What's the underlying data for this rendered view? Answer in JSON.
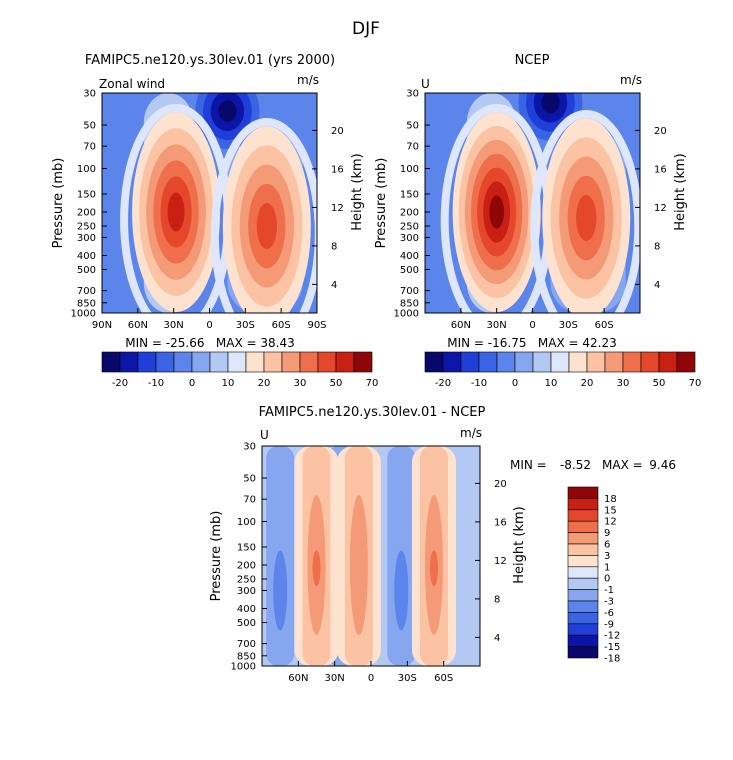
{
  "page": {
    "title": "DJF"
  },
  "colors": {
    "blue_scale": [
      "#08086b",
      "#0b16a8",
      "#1f3fd8",
      "#3a64e3",
      "#5b85ea",
      "#86a7ef",
      "#b3c9f4",
      "#dde6fa"
    ],
    "red_scale": [
      "#fde3cf",
      "#fbc3a3",
      "#f59a76",
      "#ef6f4d",
      "#e4472b",
      "#c92014",
      "#8e0606"
    ]
  },
  "chart_data": [
    {
      "id": "model",
      "type": "contour",
      "title": "FAMIPC5.ne120.ys.30lev.01 (yrs 2000)",
      "left_label": "Zonal wind",
      "right_label": "m/s",
      "ylabel": "Pressure (mb)",
      "y2label": "Height (km)",
      "x_ticks": [
        "90N",
        "60N",
        "30N",
        "0",
        "30S",
        "60S",
        "90S"
      ],
      "x_tick_values": [
        90,
        60,
        30,
        0,
        -30,
        -60,
        -90
      ],
      "xlim": [
        90,
        -90
      ],
      "y_ticks": [
        "30",
        "50",
        "70",
        "100",
        "150",
        "200",
        "250",
        "300",
        "400",
        "500",
        "700",
        "850",
        "1000"
      ],
      "y_tick_values": [
        30,
        50,
        70,
        100,
        150,
        200,
        250,
        300,
        400,
        500,
        700,
        850,
        1000
      ],
      "ylim": [
        1000,
        30
      ],
      "height_ticks": [
        "20",
        "16",
        "12",
        "8",
        "4"
      ],
      "height_tick_values": [
        20,
        16,
        12,
        8,
        4
      ],
      "jets": [
        {
          "lat": 28,
          "p": 200,
          "max": 38.43
        },
        {
          "lat": -48,
          "p": 250,
          "max": 28
        }
      ],
      "easterly_min": {
        "lat": -15,
        "p": 40,
        "min": -25.66
      },
      "stats": "MIN = -25.66   MAX = 38.43",
      "min": -25.66,
      "max": 38.43,
      "colorbar": {
        "orientation": "horizontal",
        "labels": [
          "-20",
          "-10",
          "0",
          "10",
          "20",
          "30",
          "50",
          "70"
        ],
        "levels": [
          -20,
          -10,
          0,
          10,
          20,
          30,
          50,
          70
        ]
      }
    },
    {
      "id": "obs",
      "type": "contour",
      "title": "NCEP",
      "left_label": "U",
      "right_label": "m/s",
      "ylabel": "Pressure (mb)",
      "y2label": "Height (km)",
      "x_ticks": [
        "60N",
        "30N",
        "0",
        "30S",
        "60S"
      ],
      "x_tick_values": [
        60,
        30,
        0,
        -30,
        -60
      ],
      "xlim": [
        90,
        -90
      ],
      "y_ticks": [
        "30",
        "50",
        "70",
        "100",
        "150",
        "200",
        "250",
        "300",
        "400",
        "500",
        "700",
        "850",
        "1000"
      ],
      "y_tick_values": [
        30,
        50,
        70,
        100,
        150,
        200,
        250,
        300,
        400,
        500,
        700,
        850,
        1000
      ],
      "ylim": [
        1000,
        30
      ],
      "height_ticks": [
        "20",
        "16",
        "12",
        "8",
        "4"
      ],
      "height_tick_values": [
        20,
        16,
        12,
        8,
        4
      ],
      "jets": [
        {
          "lat": 30,
          "p": 200,
          "max": 42.23
        },
        {
          "lat": -45,
          "p": 220,
          "max": 30
        }
      ],
      "easterly_min": {
        "lat": -15,
        "p": 35,
        "min": -16.75
      },
      "stats": "MIN = -16.75   MAX = 42.23",
      "min": -16.75,
      "max": 42.23,
      "colorbar": {
        "orientation": "horizontal",
        "labels": [
          "-20",
          "-10",
          "0",
          "10",
          "20",
          "30",
          "50",
          "70"
        ],
        "levels": [
          -20,
          -10,
          0,
          10,
          20,
          30,
          50,
          70
        ]
      }
    },
    {
      "id": "diff",
      "type": "contour",
      "title": "FAMIPC5.ne120.ys.30lev.01 - NCEP",
      "left_label": "U",
      "right_label": "m/s",
      "ylabel": "Pressure (mb)",
      "y2label": "Height (km)",
      "x_ticks": [
        "60N",
        "30N",
        "0",
        "30S",
        "60S"
      ],
      "x_tick_values": [
        60,
        30,
        0,
        -30,
        -60
      ],
      "xlim": [
        90,
        -90
      ],
      "y_ticks": [
        "30",
        "50",
        "70",
        "100",
        "150",
        "200",
        "250",
        "300",
        "400",
        "500",
        "700",
        "850",
        "1000"
      ],
      "y_tick_values": [
        30,
        50,
        70,
        100,
        150,
        200,
        250,
        300,
        400,
        500,
        700,
        850,
        1000
      ],
      "ylim": [
        1000,
        30
      ],
      "height_ticks": [
        "20",
        "16",
        "12",
        "8",
        "4"
      ],
      "height_tick_values": [
        20,
        16,
        12,
        8,
        4
      ],
      "positive_bands_lat": [
        45,
        10,
        -52
      ],
      "negative_bands_lat": [
        75,
        25,
        -25
      ],
      "stats_min_label": "MIN =",
      "stats_min_value": "-8.52",
      "stats_max_label": "MAX =",
      "stats_max_value": "9.46",
      "min": -8.52,
      "max": 9.46,
      "colorbar": {
        "orientation": "vertical",
        "labels": [
          "18",
          "15",
          "12",
          "9",
          "6",
          "3",
          "1",
          "0",
          "-1",
          "-3",
          "-6",
          "-9",
          "-12",
          "-15",
          "-18"
        ],
        "levels": [
          18,
          15,
          12,
          9,
          6,
          3,
          1,
          0,
          -1,
          -3,
          -6,
          -9,
          -12,
          -15,
          -18
        ]
      }
    }
  ]
}
